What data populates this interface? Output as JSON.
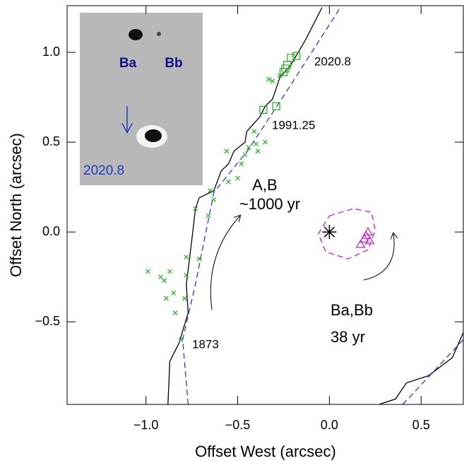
{
  "chart_data": {
    "type": "scatter",
    "xlabel": "Offset West (arcsec)",
    "ylabel": "Offset North (arcsec)",
    "xlim": [
      -1.43,
      0.73
    ],
    "ylim": [
      -0.96,
      1.26
    ],
    "xticks": [
      {
        "value": -1.0,
        "label": "−1.0"
      },
      {
        "value": -0.5,
        "label": "−0.5"
      },
      {
        "value": 0,
        "label": "0.0"
      },
      0.5
    ],
    "yticks": [
      {
        "value": -0.5,
        "label": "−0.5"
      },
      {
        "value": 0,
        "label": "0.0"
      },
      0.5,
      {
        "value": 1.0,
        "label": "1.0"
      }
    ],
    "series": [
      {
        "marker": "line",
        "color": "#000000",
        "x": [
          -0.88,
          -0.87,
          -0.82,
          -0.77,
          -0.78,
          -0.76,
          -0.73,
          -0.71,
          -0.63,
          -0.59,
          -0.55,
          -0.52,
          -0.46,
          -0.45,
          -0.38,
          -0.35,
          -0.31,
          -0.27,
          -0.21,
          -0.13,
          -0.08,
          -0.04,
          null,
          0.27,
          0.36,
          0.42,
          0.54,
          0.67,
          0.73
        ],
        "y": [
          -0.96,
          -0.72,
          -0.62,
          -0.45,
          -0.29,
          -0.13,
          0.13,
          0.19,
          0.23,
          0.34,
          0.38,
          0.45,
          0.5,
          0.56,
          0.64,
          0.7,
          0.74,
          0.86,
          0.93,
          1.07,
          1.17,
          1.25,
          null,
          -0.96,
          -0.93,
          -0.84,
          -0.8,
          -0.7,
          -0.56
        ]
      },
      {
        "marker": "dashed",
        "color": "#1f3fbf",
        "x": [
          -0.77,
          -0.8,
          -0.73,
          -0.63,
          -0.44,
          -0.21,
          0.06,
          null,
          0.4,
          0.73
        ],
        "y": [
          -0.96,
          -0.6,
          -0.29,
          0.22,
          0.46,
          0.82,
          1.25,
          null,
          -0.96,
          -0.6
        ]
      },
      {
        "marker": "dashed",
        "color": "#c020c0",
        "x": [
          0.0,
          0.13,
          0.23,
          0.25,
          0.21,
          0.1,
          -0.02,
          -0.06,
          0.0
        ],
        "y": [
          0.09,
          0.13,
          0.11,
          0.01,
          -0.1,
          -0.15,
          -0.11,
          -0.01,
          0.09
        ]
      },
      {
        "marker": "x",
        "color": "#22aa22",
        "x": [
          -0.99,
          -0.92,
          -0.87,
          -0.9,
          -0.85,
          -0.89,
          -0.84,
          -0.79,
          -0.78,
          -0.78,
          -0.71,
          -0.73,
          -0.66,
          -0.65,
          -0.63,
          -0.56,
          -0.55,
          -0.5,
          -0.48,
          -0.46,
          -0.44,
          -0.4,
          -0.41,
          -0.39,
          -0.35,
          -0.33,
          -0.31,
          -0.27,
          -0.81
        ],
        "y": [
          -0.22,
          -0.25,
          -0.22,
          -0.27,
          -0.34,
          -0.37,
          -0.45,
          -0.37,
          -0.24,
          -0.14,
          -0.15,
          0.13,
          0.09,
          0.23,
          0.18,
          0.45,
          0.28,
          0.3,
          0.38,
          0.43,
          0.47,
          0.49,
          0.56,
          0.45,
          0.5,
          0.85,
          0.84,
          0.87,
          -0.6
        ]
      },
      {
        "marker": "square",
        "color": "#22aa22",
        "x": [
          -0.36,
          -0.29,
          -0.25,
          -0.24,
          -0.23,
          -0.21,
          -0.18
        ],
        "y": [
          0.68,
          0.7,
          0.89,
          0.91,
          0.93,
          0.97,
          0.98
        ]
      },
      {
        "marker": "triangle",
        "color": "#c020c0",
        "x": [
          0.17,
          0.19,
          0.2,
          0.21,
          0.22
        ],
        "y": [
          -0.07,
          -0.04,
          -0.02,
          0.0,
          -0.05
        ]
      },
      {
        "marker": "star",
        "color": "#000000",
        "x": [
          0
        ],
        "y": [
          0
        ]
      }
    ],
    "annotations": [
      "2020.8",
      "1991.25",
      "1873",
      "A,B",
      "~1000 yr",
      "Ba,Bb",
      "38 yr"
    ],
    "inset": {
      "labels": [
        "Ba",
        "Bb"
      ],
      "epoch": "2020.8"
    }
  }
}
